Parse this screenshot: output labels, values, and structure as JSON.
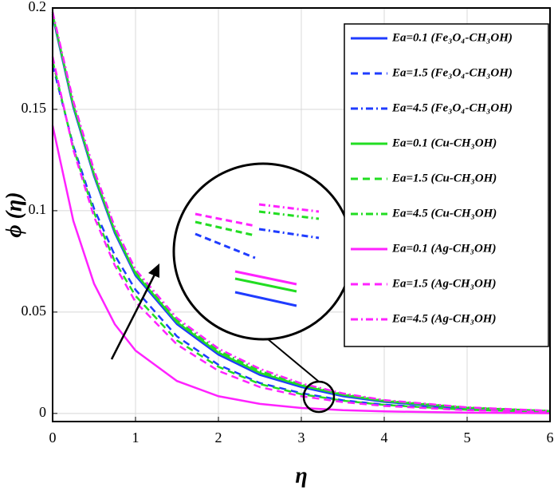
{
  "chart_data": {
    "type": "line",
    "x_label": "η",
    "y_label": "ϕ (η)",
    "x": [
      0,
      0.25,
      0.5,
      0.75,
      1,
      1.5,
      2,
      2.5,
      3,
      3.5,
      4,
      5,
      6
    ],
    "xlim": [
      0,
      6
    ],
    "xticks": [
      0,
      1,
      2,
      3,
      4,
      5,
      6
    ],
    "ylim": [
      -0.004,
      0.2
    ],
    "yticks": [
      0,
      0.05,
      0.1,
      0.15,
      0.2
    ],
    "grid": true,
    "legend": "upper right",
    "series": [
      {
        "name": "Ea=0.1 (Fe₃O₄-CH₃OH)",
        "color": "#1f3cff",
        "dash": "solid",
        "values": [
          0.196,
          0.151,
          0.117,
          0.089,
          0.068,
          0.044,
          0.029,
          0.019,
          0.013,
          0.0085,
          0.0057,
          0.0025,
          0.001
        ]
      },
      {
        "name": "Ea=1.5 (Fe₃O₄-CH₃OH)",
        "color": "#1f3cff",
        "dash": "dashed",
        "values": [
          0.172,
          0.132,
          0.101,
          0.078,
          0.061,
          0.038,
          0.024,
          0.015,
          0.01,
          0.0065,
          0.0043,
          0.0019,
          0.0008
        ]
      },
      {
        "name": "Ea=4.5 (Fe₃O₄-CH₃OH)",
        "color": "#1f3cff",
        "dash": "dashdot",
        "values": [
          0.197,
          0.152,
          0.118,
          0.09,
          0.069,
          0.045,
          0.03,
          0.02,
          0.0135,
          0.009,
          0.006,
          0.0027,
          0.0011
        ]
      },
      {
        "name": "Ea=0.1 (Cu-CH₃OH)",
        "color": "#22dd22",
        "dash": "solid",
        "values": [
          0.197,
          0.152,
          0.118,
          0.09,
          0.069,
          0.045,
          0.03,
          0.02,
          0.0138,
          0.0092,
          0.0061,
          0.0028,
          0.0012
        ]
      },
      {
        "name": "Ea=1.5 (Cu-CH₃OH)",
        "color": "#22dd22",
        "dash": "dashed",
        "values": [
          0.174,
          0.131,
          0.099,
          0.075,
          0.058,
          0.036,
          0.023,
          0.0145,
          0.0095,
          0.0063,
          0.0042,
          0.0018,
          0.0008
        ]
      },
      {
        "name": "Ea=4.5 (Cu-CH₃OH)",
        "color": "#22dd22",
        "dash": "dashdot",
        "values": [
          0.198,
          0.153,
          0.119,
          0.091,
          0.07,
          0.046,
          0.031,
          0.021,
          0.0142,
          0.0095,
          0.0063,
          0.0029,
          0.0012
        ]
      },
      {
        "name": "Ea=0.1 (Ag-CH₃OH)",
        "color": "#ff22ff",
        "dash": "solid",
        "values": [
          0.142,
          0.095,
          0.064,
          0.044,
          0.031,
          0.016,
          0.0085,
          0.0047,
          0.0027,
          0.0016,
          0.001,
          0.0004,
          0.0001
        ]
      },
      {
        "name": "Ea=1.5 (Ag-CH₃OH)",
        "color": "#ff22ff",
        "dash": "dashed",
        "values": [
          0.176,
          0.13,
          0.097,
          0.073,
          0.055,
          0.034,
          0.021,
          0.013,
          0.0085,
          0.0056,
          0.0037,
          0.0016,
          0.0007
        ]
      },
      {
        "name": "Ea=4.5 (Ag-CH₃OH)",
        "color": "#ff22ff",
        "dash": "dashdot",
        "values": [
          0.198,
          0.154,
          0.12,
          0.092,
          0.071,
          0.047,
          0.032,
          0.022,
          0.0148,
          0.0099,
          0.0066,
          0.003,
          0.0013
        ]
      }
    ]
  }
}
